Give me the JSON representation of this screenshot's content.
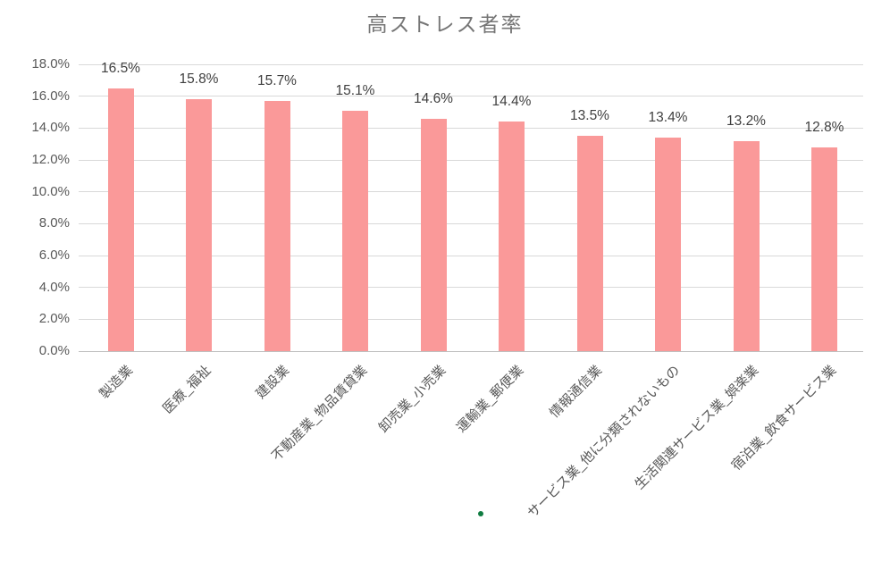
{
  "title": "高ストレス者率",
  "colors": {
    "bar": "#fa9999",
    "gridline": "#d9d9d9",
    "axis_line": "#bfbfbf",
    "title_text": "#767676",
    "tick_text": "#595959",
    "data_label_text": "#3f3f3f",
    "stray_dot": "#107c41"
  },
  "chart_data": {
    "type": "bar",
    "title": "高ストレス者率",
    "categories": [
      "製造業",
      "医療_福祉",
      "建設業",
      "不動産業_物品賃貸業",
      "卸売業_小売業",
      "運輸業_郵便業",
      "情報通信業",
      "サービス業_他に分類されないもの",
      "生活関連サービス業_娯楽業",
      "宿泊業_飲食サービス業"
    ],
    "values": [
      16.5,
      15.8,
      15.7,
      15.1,
      14.6,
      14.4,
      13.5,
      13.4,
      13.2,
      12.8
    ],
    "data_labels": [
      "16.5%",
      "15.8%",
      "15.7%",
      "15.1%",
      "14.6%",
      "14.4%",
      "13.5%",
      "13.4%",
      "13.2%",
      "12.8%"
    ],
    "xlabel": "",
    "ylabel": "",
    "ylim": [
      0,
      18
    ],
    "y_tick_values": [
      0,
      2,
      4,
      6,
      8,
      10,
      12,
      14,
      16,
      18
    ],
    "y_tick_labels": [
      "0.0%",
      "2.0%",
      "4.0%",
      "6.0%",
      "8.0%",
      "10.0%",
      "12.0%",
      "14.0%",
      "16.0%",
      "18.0%"
    ],
    "grid": true,
    "legend": "none",
    "data_label_position": "outside-end",
    "category_label_rotation_deg": -45
  }
}
